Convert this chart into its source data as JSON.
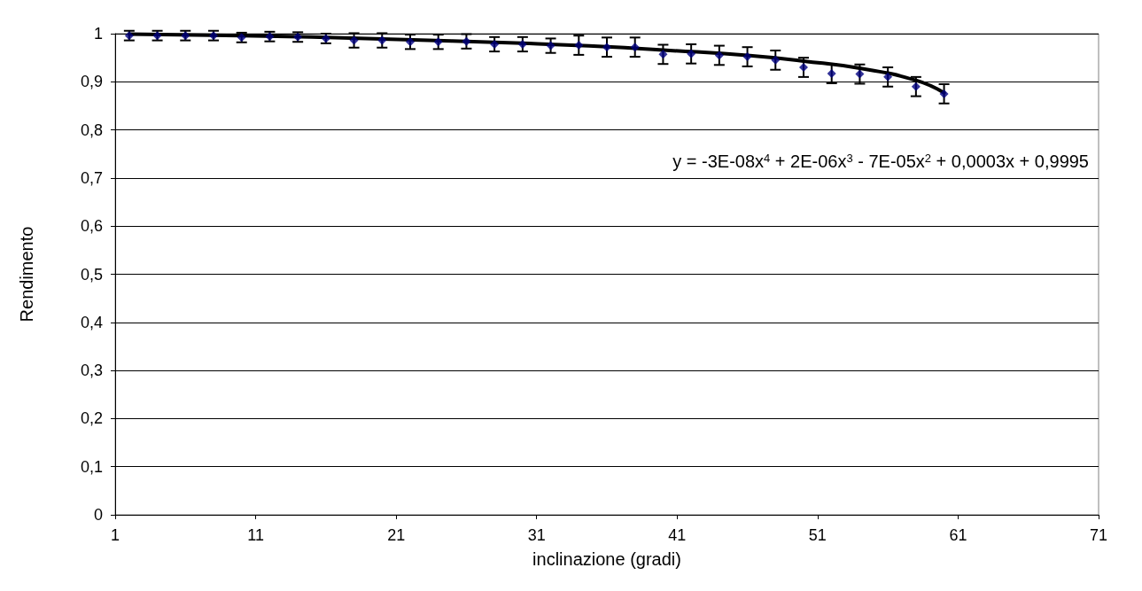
{
  "chart_data": {
    "type": "scatter",
    "xlabel": "inclinazione (gradi)",
    "ylabel": "Rendimento",
    "xlim": [
      1,
      71
    ],
    "xticks": [
      1,
      11,
      21,
      31,
      41,
      51,
      61,
      71
    ],
    "ylim": [
      0,
      1
    ],
    "yticks": [
      0,
      {
        "value": 0.1,
        "label": "0,1"
      },
      {
        "value": 0.2,
        "label": "0,2"
      },
      {
        "value": 0.3,
        "label": "0,3"
      },
      {
        "value": 0.4,
        "label": "0,4"
      },
      {
        "value": 0.5,
        "label": "0,5"
      },
      {
        "value": 0.6,
        "label": "0,6"
      },
      {
        "value": 0.7,
        "label": "0,7"
      },
      {
        "value": 0.8,
        "label": "0,8"
      },
      {
        "value": 0.9,
        "label": "0,9"
      },
      1
    ],
    "grid": "y",
    "annotations": [
      "y = -3E-08x$^{4}$ + 2E-06x$^{3}$ - 7E-05x$^{2}$ + 0,0003x + 0,9995"
    ],
    "series": [
      {
        "color": "#000080",
        "marker": "diamond",
        "x": [
          2,
          4,
          6,
          8,
          10,
          12,
          14,
          16,
          18,
          20,
          22,
          24,
          26,
          28,
          30,
          32,
          34,
          36,
          38,
          40,
          42,
          44,
          46,
          48,
          50,
          52,
          54,
          56,
          58,
          60
        ],
        "values": [
          0.996,
          0.996,
          0.996,
          0.996,
          0.992,
          0.994,
          0.993,
          0.99,
          0.986,
          0.986,
          0.983,
          0.983,
          0.984,
          0.978,
          0.978,
          0.975,
          0.976,
          0.972,
          0.972,
          0.957,
          0.958,
          0.955,
          0.952,
          0.945,
          0.93,
          0.917,
          0.916,
          0.91,
          0.89,
          0.875
        ],
        "errors": [
          0.01,
          0.01,
          0.01,
          0.01,
          0.01,
          0.01,
          0.01,
          0.01,
          0.015,
          0.015,
          0.015,
          0.015,
          0.015,
          0.015,
          0.015,
          0.015,
          0.02,
          0.02,
          0.02,
          0.02,
          0.02,
          0.02,
          0.02,
          0.02,
          0.02,
          0.02,
          0.02,
          0.02,
          0.02,
          0.02
        ]
      },
      {
        "type": "line",
        "color": "#000000",
        "marker": "none",
        "x": [
          2,
          10,
          20,
          30,
          36,
          40,
          46,
          50,
          54,
          58,
          60
        ],
        "values": [
          0.999,
          0.996,
          0.989,
          0.98,
          0.973,
          0.966,
          0.955,
          0.943,
          0.928,
          0.903,
          0.877
        ]
      }
    ]
  }
}
